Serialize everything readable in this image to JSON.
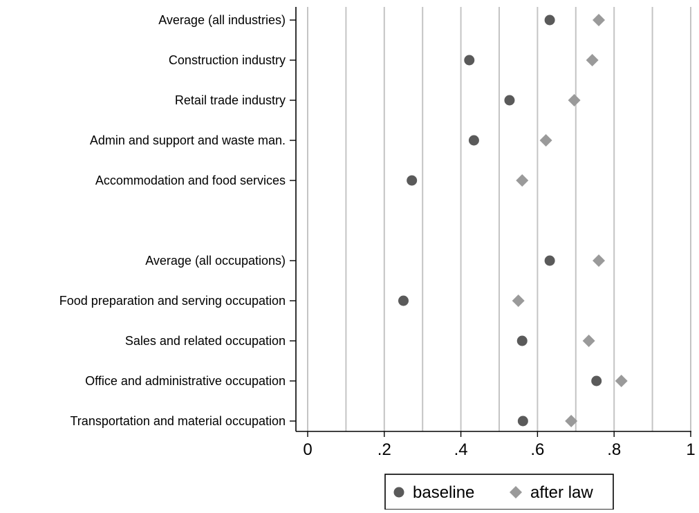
{
  "chart_data": {
    "type": "scatter",
    "orientation": "horizontal-dot-plot",
    "xlim": [
      0,
      1
    ],
    "x_ticks": [
      0,
      0.2,
      0.4,
      0.6,
      0.8,
      1
    ],
    "x_tick_labels": [
      "0",
      ".2",
      ".4",
      ".6",
      ".8",
      "1"
    ],
    "grid": true,
    "legend_position": "bottom",
    "categories": [
      "Average (all industries)",
      "Construction industry",
      "Retail trade industry",
      "Admin and support and waste man.",
      "Accommodation and food services",
      "",
      "Average (all occupations)",
      "Food preparation and serving occupation",
      "Sales and related occupation",
      "Office and administrative occupation",
      "Transportation and material occupation"
    ],
    "series": [
      {
        "name": "baseline",
        "marker": "circle",
        "color": "#5a5a5a",
        "values": [
          0.632,
          0.422,
          0.527,
          0.434,
          0.272,
          null,
          0.632,
          0.25,
          0.56,
          0.754,
          0.562
        ]
      },
      {
        "name": "after law",
        "marker": "diamond",
        "color": "#9a9a9a",
        "values": [
          0.76,
          0.743,
          0.696,
          0.622,
          0.56,
          null,
          0.76,
          0.55,
          0.734,
          0.819,
          0.688
        ]
      }
    ],
    "legend": [
      "baseline",
      "after law"
    ]
  }
}
